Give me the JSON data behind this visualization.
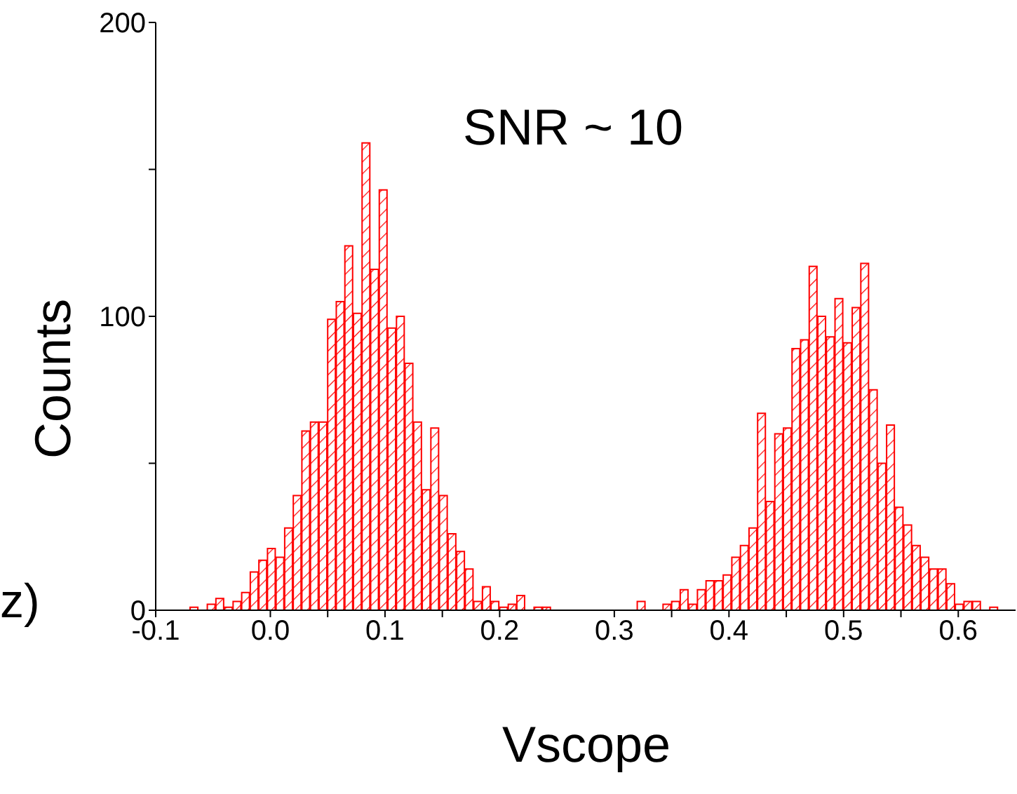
{
  "chart_data": {
    "type": "histogram",
    "xlabel": "Vscope",
    "ylabel": "Counts",
    "annotations": [
      "SNR ~ 10",
      "z)"
    ],
    "color": "#ff0000",
    "bins": [
      -0.07,
      -0.0625,
      -0.055,
      -0.0475,
      -0.04,
      -0.0325,
      -0.025,
      -0.0175,
      -0.01,
      -0.0025,
      0.005,
      0.0125,
      0.02,
      0.0275,
      0.035,
      0.0425,
      0.05,
      0.0575,
      0.065,
      0.0725,
      0.08,
      0.0875,
      0.095,
      0.1025,
      0.11,
      0.1175,
      0.125,
      0.1325,
      0.14,
      0.1475,
      0.155,
      0.1625,
      0.17,
      0.1775,
      0.185,
      0.1925,
      0.2,
      0.2075,
      0.215,
      0.2225,
      0.23,
      0.2375,
      0.245,
      0.2525,
      0.26,
      0.2675,
      0.275,
      0.2825,
      0.29,
      0.2975,
      0.305,
      0.3125,
      0.32,
      0.3275,
      0.335,
      0.3425,
      0.35,
      0.3575,
      0.365,
      0.3725,
      0.38,
      0.3875,
      0.395,
      0.4025,
      0.41,
      0.4175,
      0.425,
      0.4325,
      0.44,
      0.4475,
      0.455,
      0.4625,
      0.47,
      0.4775,
      0.485,
      0.4925,
      0.5,
      0.5075,
      0.515,
      0.5225,
      0.53,
      0.5375,
      0.545,
      0.5525,
      0.56,
      0.5675,
      0.575,
      0.5825,
      0.59,
      0.5975,
      0.605,
      0.6125,
      0.62,
      0.6275,
      0.635,
      0.6425,
      0.65
    ],
    "values": [
      1,
      0,
      2,
      4,
      1,
      3,
      6,
      13,
      17,
      21,
      18,
      28,
      39,
      61,
      64,
      64,
      99,
      105,
      124,
      101,
      159,
      116,
      143,
      96,
      100,
      84,
      64,
      41,
      62,
      39,
      26,
      20,
      14,
      3,
      8,
      3,
      1,
      2,
      5,
      0,
      1,
      1,
      0,
      0,
      0,
      0,
      0,
      0,
      0,
      0,
      0,
      0,
      3,
      0,
      0,
      2,
      3,
      7,
      2,
      7,
      10,
      10,
      12,
      18,
      22,
      28,
      67,
      37,
      60,
      62,
      89,
      92,
      117,
      100,
      93,
      106,
      91,
      103,
      118,
      75,
      50,
      63,
      35,
      29,
      22,
      18,
      14,
      14,
      9,
      2,
      3,
      3,
      0,
      1,
      0,
      0
    ],
    "xlim": [
      -0.1,
      0.65
    ],
    "xticks": [
      -0.1,
      {
        "value": 0,
        "label": "0.0"
      },
      {
        "value": 0.05,
        "label": null
      },
      0.1,
      {
        "value": 0.15,
        "label": null
      },
      0.2,
      0.3,
      {
        "value": 0.35,
        "label": null
      },
      0.4,
      {
        "value": 0.45,
        "label": null
      },
      0.5,
      {
        "value": 0.55,
        "label": null
      },
      0.6
    ],
    "ylim": [
      0,
      200
    ],
    "yticks": [
      0,
      {
        "value": 50,
        "label": null
      },
      100,
      {
        "value": 150,
        "label": null
      },
      200
    ]
  }
}
